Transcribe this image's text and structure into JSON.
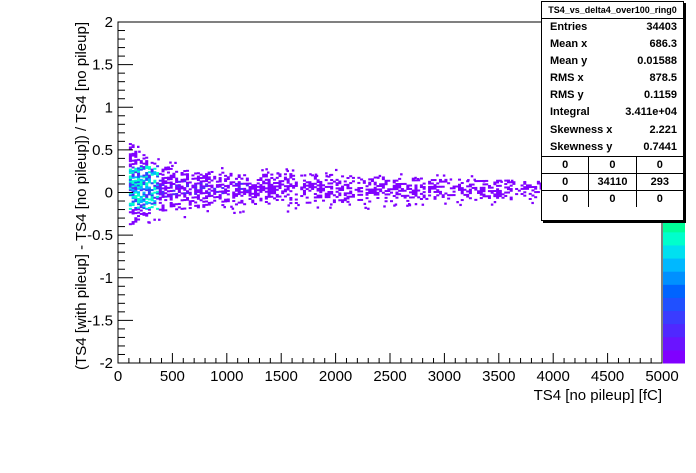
{
  "chart_data": {
    "type": "heatmap",
    "title": "",
    "xlabel": "TS4 [no pileup] [fC]",
    "ylabel": "(TS4 [with pileup] - TS4 [no pileup]) / TS4 [no pileup]",
    "xlim": [
      0,
      5000
    ],
    "ylim": [
      -2,
      2
    ],
    "x_ticks": [
      "0",
      "500",
      "1000",
      "1500",
      "2000",
      "2500",
      "3000",
      "3500",
      "4000",
      "4500",
      "5000"
    ],
    "y_ticks": [
      "-2",
      "-1.5",
      "-1",
      "-0.5",
      "0",
      "0.5",
      "1",
      "1.5",
      "2"
    ],
    "palette": [
      "#8000ff",
      "#6a14ff",
      "#5028ff",
      "#3a3cff",
      "#2050ff",
      "#0064ff",
      "#0090ff",
      "#00b8ff",
      "#00e0f0",
      "#00ffcc",
      "#00ff99",
      "#00ff66",
      "#00ff33",
      "#33ff00",
      "#66ff00",
      "#99ff00",
      "#ccff00",
      "#ffff00",
      "#ffdd00",
      "#ffbb00",
      "#ff9900",
      "#ff7700",
      "#ff5500",
      "#ff3300",
      "#ff1100",
      "#ff0000"
    ],
    "band": [
      {
        "x": 100,
        "y_low": -0.4,
        "y_high": 0.6
      },
      {
        "x": 200,
        "y_low": -0.3,
        "y_high": 0.45
      },
      {
        "x": 400,
        "y_low": -0.22,
        "y_high": 0.3
      },
      {
        "x": 1000,
        "y_low": -0.15,
        "y_high": 0.22
      },
      {
        "x": 2000,
        "y_low": -0.12,
        "y_high": 0.2
      },
      {
        "x": 3000,
        "y_low": -0.1,
        "y_high": 0.15
      },
      {
        "x": 4000,
        "y_low": -0.08,
        "y_high": 0.12
      },
      {
        "x": 4950,
        "y_low": -0.06,
        "y_high": 0.1
      }
    ],
    "hot_region": {
      "x_range": [
        100,
        350
      ],
      "y_range": [
        -0.2,
        0.3
      ]
    }
  },
  "stats_box": {
    "title": "TS4_vs_delta4_over100_ring0",
    "rows": [
      {
        "label": "Entries",
        "value": "34403"
      },
      {
        "label": "Mean x",
        "value": "686.3"
      },
      {
        "label": "Mean y",
        "value": "0.01588"
      },
      {
        "label": "RMS x",
        "value": "878.5"
      },
      {
        "label": "RMS y",
        "value": "0.1159"
      },
      {
        "label": "Integral",
        "value": "3.411e+04"
      },
      {
        "label": "Skewness x",
        "value": "2.221"
      },
      {
        "label": "Skewness y",
        "value": "0.7441"
      }
    ],
    "grid": [
      [
        "0",
        "0",
        "0"
      ],
      [
        "0",
        "34110",
        "293"
      ],
      [
        "0",
        "0",
        "0"
      ]
    ]
  }
}
